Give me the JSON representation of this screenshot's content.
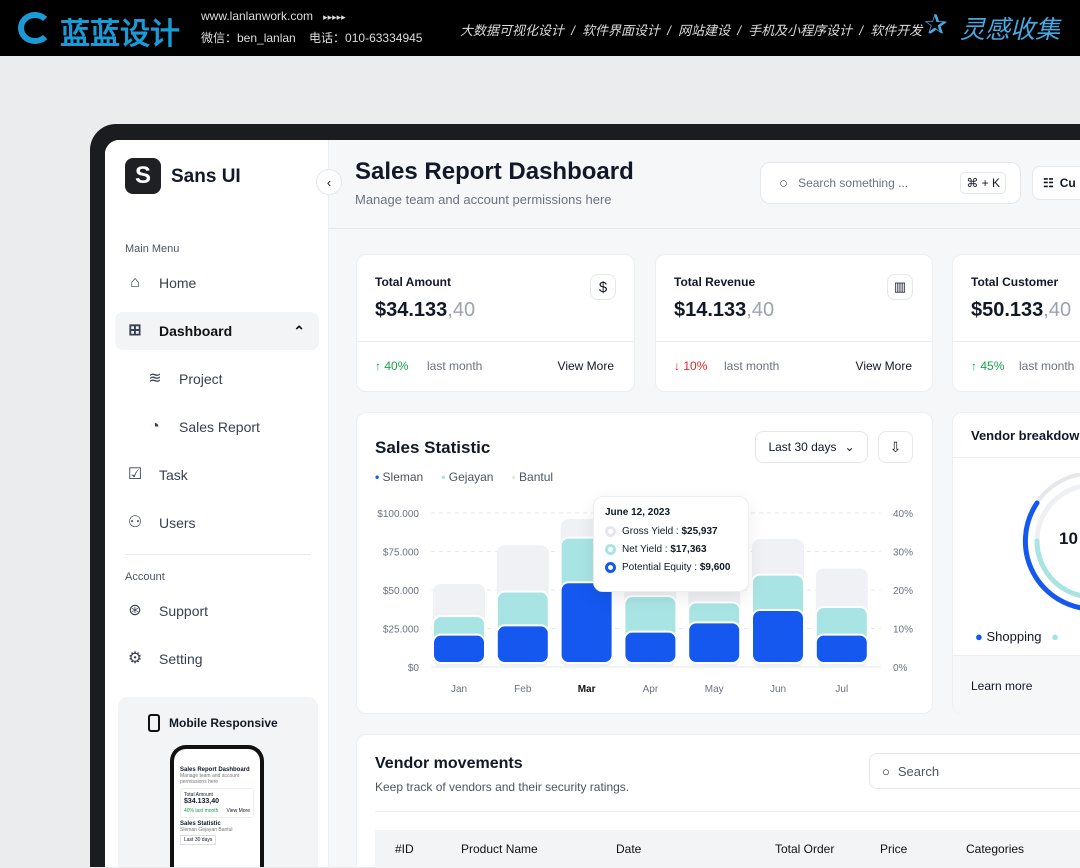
{
  "banner": {
    "brand": "蓝蓝设计",
    "url": "www.lanlanwork.com",
    "arrows": "▸▸▸▸▸",
    "contact": "微信：ben_lanlan    电话：010-63334945",
    "services": "大数据可视化设计  /  软件界面设计  /  网站建设  /  手机及小程序设计  /  软件开发",
    "right_brand": "灵感收集"
  },
  "sidebar": {
    "logo_text": "Sans UI",
    "main_menu_label": "Main Menu",
    "items": [
      {
        "label": "Home",
        "icon": "home-icon"
      },
      {
        "label": "Dashboard",
        "icon": "grid-icon"
      },
      {
        "label": "Project",
        "icon": "layers-icon"
      },
      {
        "label": "Sales Report",
        "icon": "pie-chart-icon"
      },
      {
        "label": "Task",
        "icon": "checkbox-icon"
      },
      {
        "label": "Users",
        "icon": "users-icon"
      }
    ],
    "account_label": "Account",
    "account_items": [
      {
        "label": "Support",
        "icon": "lifebuoy-icon"
      },
      {
        "label": "Setting",
        "icon": "gear-icon"
      }
    ],
    "promo": {
      "title": "Mobile Responsive",
      "phone_title": "Sales Report Dashboard",
      "phone_sub": "Manage team and account permissions here",
      "phone_card_label": "Total Amount",
      "phone_card_value": "$34.133,40",
      "phone_stat": "40%  last month",
      "phone_view": "View More",
      "phone_section": "Sales Statistic",
      "phone_legend": "Sleman  Gejayan  Bantul",
      "phone_filter": "Last 30 days"
    }
  },
  "header": {
    "title": "Sales Report Dashboard",
    "subtitle": "Manage team and account permissions here",
    "search_placeholder": "Search something ...",
    "shortcut": "⌘ + K",
    "customize": "Cu"
  },
  "stats": [
    {
      "label": "Total Amount",
      "value": "$34.133",
      "cents": ",40",
      "change": "40%",
      "direction": "up",
      "period": "last month",
      "link": "View More",
      "icon": "$"
    },
    {
      "label": "Total Revenue",
      "value": "$14.133",
      "cents": ",40",
      "change": "10%",
      "direction": "down",
      "period": "last month",
      "link": "View More",
      "icon": "▥"
    },
    {
      "label": "Total Customer",
      "value": "$50.133",
      "cents": ",40",
      "change": "45%",
      "direction": "up",
      "period": "last month"
    }
  ],
  "colors": {
    "primary": "#1558f0",
    "teal": "#a9e4e4",
    "gray": "#eff1f5",
    "up": "#16a34a",
    "down": "#dc2626"
  },
  "sales": {
    "title": "Sales Statistic",
    "filter": "Last 30 days",
    "legend": [
      "Sleman",
      "Gejayan",
      "Bantul"
    ],
    "tooltip": {
      "date": "June 12, 2023",
      "rows": [
        {
          "label": "Gross Yield : ",
          "value": "$25,937"
        },
        {
          "label": "Net Yield : ",
          "value": "$17,363"
        },
        {
          "label": "Potential Equity : ",
          "value": "$9,600"
        }
      ]
    }
  },
  "chart_data": {
    "type": "bar",
    "categories": [
      "Jan",
      "Feb",
      "Mar",
      "Apr",
      "May",
      "Jun",
      "Jul"
    ],
    "highlighted": "Mar",
    "series": [
      {
        "name": "Bantul",
        "values": [
          54000,
          79000,
          96000,
          60000,
          60000,
          83000,
          64000
        ]
      },
      {
        "name": "Gejayan",
        "values": [
          33000,
          49000,
          84000,
          46000,
          42000,
          60000,
          39000
        ]
      },
      {
        "name": "Sleman",
        "values": [
          21000,
          27000,
          55000,
          23000,
          29000,
          37000,
          21000
        ]
      }
    ],
    "yticks": [
      "$0",
      "$25.000",
      "$50.000",
      "$75.000",
      "$100.000"
    ],
    "y2ticks": [
      "0%",
      "10%",
      "20%",
      "30%",
      "40%"
    ],
    "ylim": [
      0,
      100000
    ],
    "grid": true
  },
  "vendor_breakdown": {
    "title": "Vendor breakdow",
    "center": "10",
    "legend": [
      "Shopping"
    ],
    "link": "Learn more"
  },
  "vendors": {
    "title": "Vendor movements",
    "subtitle": "Keep track of vendors and their security ratings.",
    "search_placeholder": "Search",
    "columns": [
      "#ID",
      "Product Name",
      "Date",
      "Total Order",
      "Price",
      "Categories"
    ]
  }
}
